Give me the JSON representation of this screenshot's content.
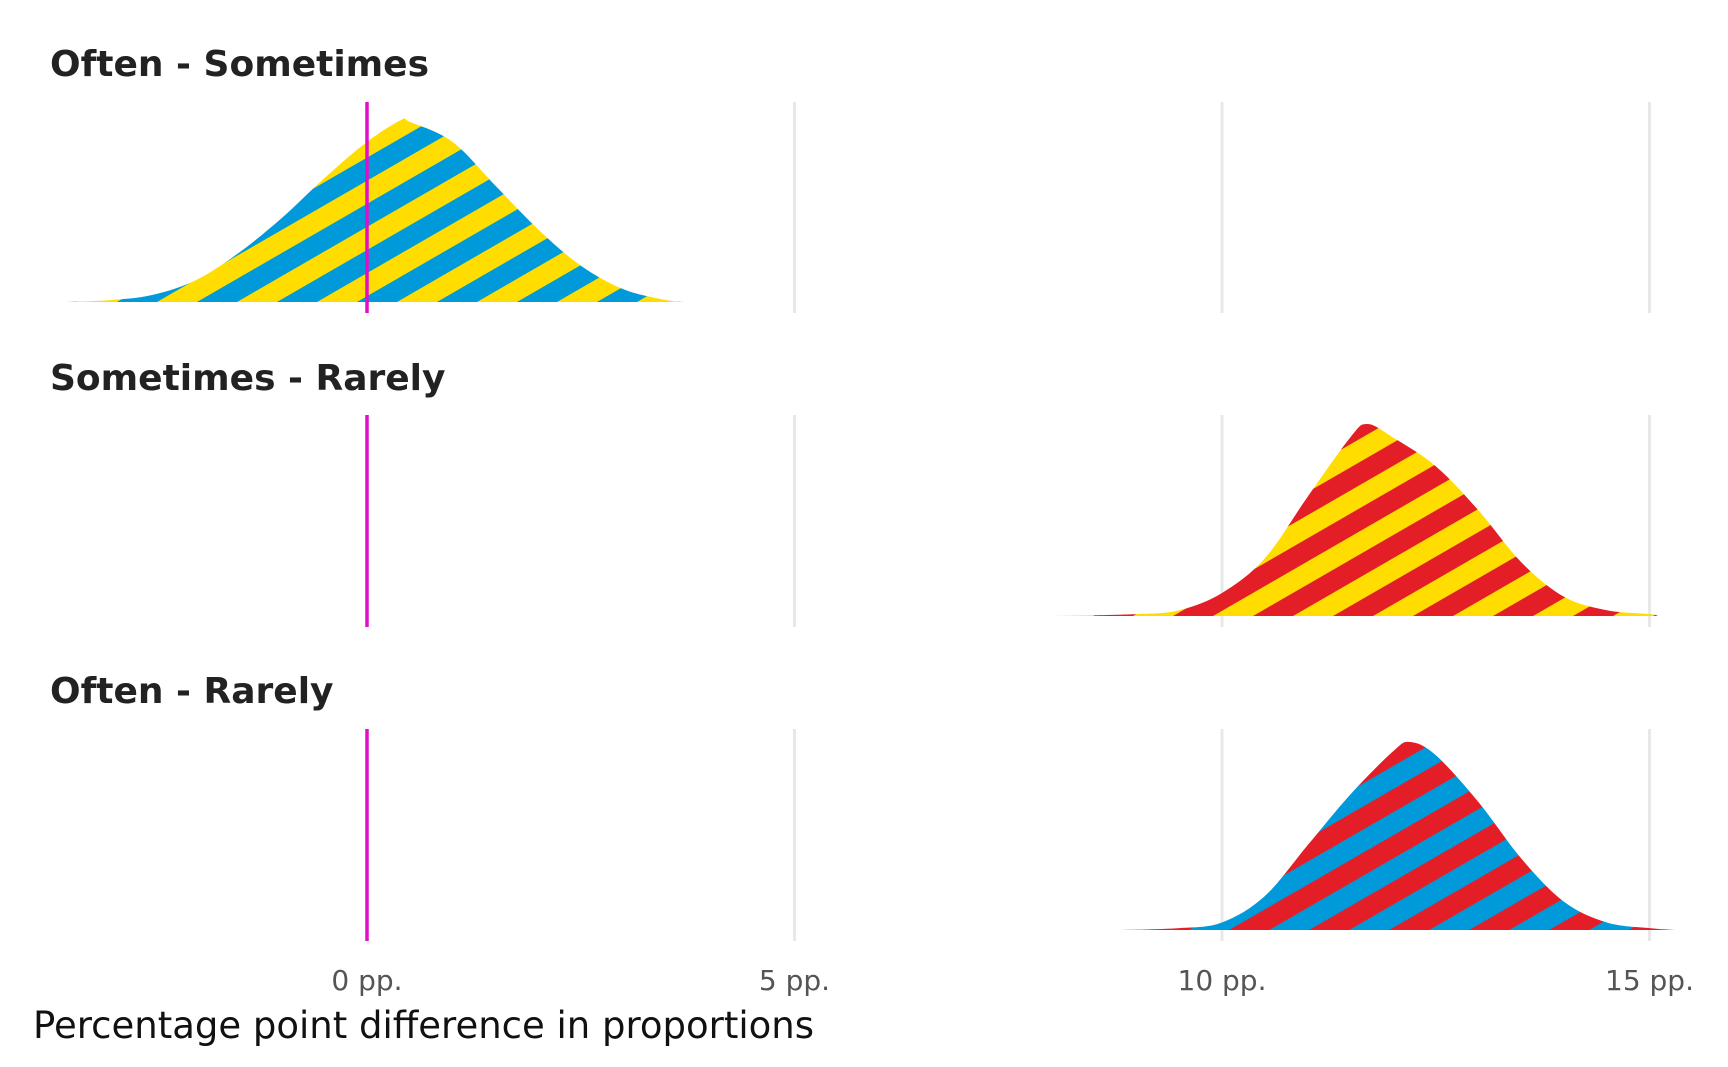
{
  "chart_data": {
    "type": "area",
    "xlabel": "Percentage point difference in proportions",
    "xlim": [
      -3.4,
      15.5
    ],
    "xticks": [
      0,
      5,
      10,
      15
    ],
    "xtick_labels": [
      "0 pp.",
      "5 pp.",
      "10 pp.",
      "15 pp."
    ],
    "reference_line_x": 0,
    "grid": "vertical",
    "colors": {
      "often": "#0099DA",
      "sometimes": "#FFDD00",
      "rarely": "#E41E26",
      "reference": "#E010C8",
      "grid": "#E8E8E8"
    },
    "panels": [
      {
        "title": "Often - Sometimes",
        "stripe_colors": [
          "#0099DA",
          "#FFDD00"
        ],
        "peak": 0.91,
        "x": [
          -3.5,
          -3,
          -2.5,
          -2,
          -1.5,
          -1,
          -0.5,
          0,
          0.4,
          0.5,
          1,
          1.5,
          2,
          2.5,
          3,
          3.5,
          3.7
        ],
        "density": [
          0,
          0.01,
          0.04,
          0.12,
          0.27,
          0.46,
          0.68,
          0.88,
          1.0,
          0.99,
          0.88,
          0.64,
          0.4,
          0.2,
          0.07,
          0.01,
          0
        ]
      },
      {
        "title": "Sometimes - Rarely",
        "stripe_colors": [
          "#E41E26",
          "#FFDD00"
        ],
        "peak": 0.96,
        "x": [
          8,
          9,
          9.5,
          10,
          10.5,
          11,
          11.5,
          11.7,
          12,
          12.5,
          13,
          13.5,
          14,
          14.5,
          15,
          15.1
        ],
        "density": [
          0,
          0.01,
          0.03,
          0.12,
          0.3,
          0.62,
          0.93,
          1.0,
          0.93,
          0.78,
          0.55,
          0.28,
          0.1,
          0.03,
          0.01,
          0
        ]
      },
      {
        "title": "Often - Rarely",
        "stripe_colors": [
          "#0099DA",
          "#E41E26"
        ],
        "peak": 0.94,
        "x": [
          8.8,
          9.5,
          10,
          10.5,
          11,
          11.5,
          12,
          12.2,
          12.5,
          13,
          13.5,
          14,
          14.5,
          15,
          15.3
        ],
        "density": [
          0,
          0.01,
          0.04,
          0.18,
          0.45,
          0.72,
          0.95,
          1.0,
          0.93,
          0.68,
          0.38,
          0.15,
          0.04,
          0.01,
          0
        ]
      }
    ]
  }
}
